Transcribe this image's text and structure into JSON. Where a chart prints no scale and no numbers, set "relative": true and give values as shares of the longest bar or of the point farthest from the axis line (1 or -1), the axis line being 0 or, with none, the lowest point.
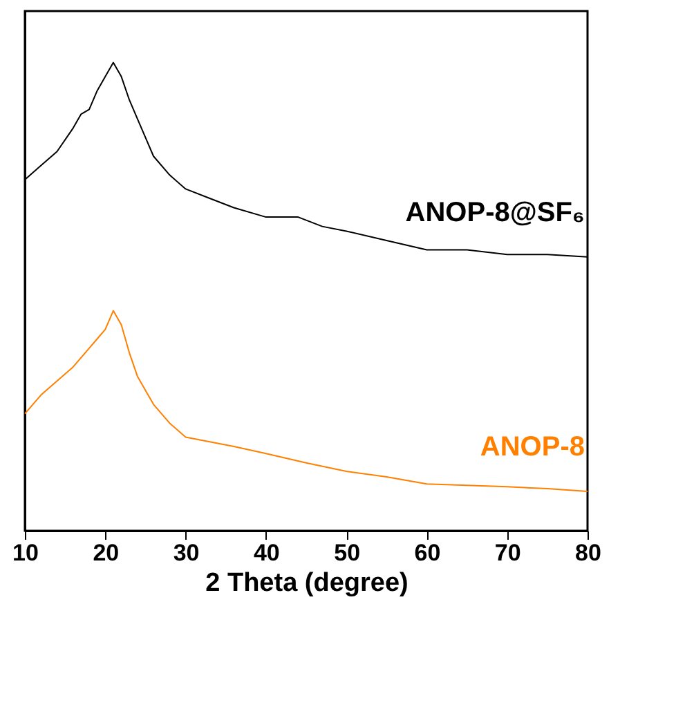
{
  "chart_data": {
    "type": "line",
    "relative": true,
    "xlabel": "2 Theta (degree)",
    "xlim": [
      10,
      80
    ],
    "xticks": [
      10,
      20,
      30,
      40,
      50,
      60,
      70,
      80
    ],
    "line_style": "solid",
    "marker": "none",
    "series": [
      {
        "name": "ANOP-8@SF₆",
        "color": "#000000",
        "x": [
          10,
          12,
          14,
          16,
          17,
          18,
          19,
          20,
          21,
          22,
          23,
          24,
          25,
          26,
          28,
          30,
          33,
          36,
          40,
          44,
          47,
          50,
          55,
          60,
          65,
          70,
          75,
          80
        ],
        "values": [
          0.75,
          0.78,
          0.81,
          0.86,
          0.89,
          0.9,
          0.94,
          0.97,
          1.0,
          0.97,
          0.92,
          0.88,
          0.84,
          0.8,
          0.76,
          0.73,
          0.71,
          0.69,
          0.67,
          0.67,
          0.65,
          0.64,
          0.62,
          0.6,
          0.6,
          0.59,
          0.59,
          0.585
        ]
      },
      {
        "name": "ANOP-8",
        "color": "#ff8000",
        "x": [
          10,
          12,
          14,
          16,
          17,
          18,
          19,
          20,
          21,
          22,
          23,
          24,
          25,
          26,
          28,
          30,
          33,
          36,
          40,
          45,
          50,
          55,
          60,
          65,
          70,
          75,
          80
        ],
        "values": [
          0.25,
          0.29,
          0.32,
          0.35,
          0.37,
          0.39,
          0.41,
          0.43,
          0.47,
          0.44,
          0.38,
          0.33,
          0.3,
          0.27,
          0.23,
          0.2,
          0.19,
          0.18,
          0.165,
          0.145,
          0.127,
          0.115,
          0.1,
          0.097,
          0.094,
          0.09,
          0.084
        ]
      }
    ]
  }
}
